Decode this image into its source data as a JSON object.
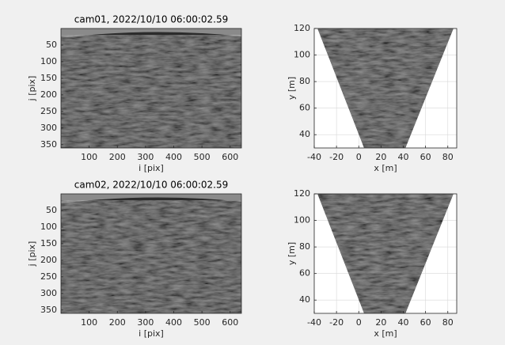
{
  "chart_data": [
    {
      "type": "image",
      "title": "cam01, 2022/10/10 06:00:02.59",
      "xlabel": "i [pix]",
      "ylabel": "j [pix]",
      "xlim": [
        0,
        640
      ],
      "ylim": [
        0,
        360
      ],
      "xticks": [
        100,
        200,
        300,
        400,
        500,
        600
      ],
      "yticks": [
        50,
        100,
        150,
        200,
        250,
        300,
        350
      ],
      "grid": false
    },
    {
      "type": "image",
      "xlabel": "x [m]",
      "ylabel": "y [m]",
      "xlim": [
        -40,
        88
      ],
      "ylim": [
        30,
        120
      ],
      "xticks": [
        -40,
        -20,
        0,
        20,
        40,
        60,
        80
      ],
      "yticks": [
        40,
        60,
        80,
        100,
        120
      ],
      "grid": true
    },
    {
      "type": "image",
      "title": "cam02, 2022/10/10 06:00:02.59",
      "xlabel": "i [pix]",
      "ylabel": "j [pix]",
      "xlim": [
        0,
        640
      ],
      "ylim": [
        0,
        360
      ],
      "xticks": [
        100,
        200,
        300,
        400,
        500,
        600
      ],
      "yticks": [
        50,
        100,
        150,
        200,
        250,
        300,
        350
      ],
      "grid": false
    },
    {
      "type": "image",
      "xlabel": "x [m]",
      "ylabel": "y [m]",
      "xlim": [
        -40,
        88
      ],
      "ylim": [
        30,
        120
      ],
      "xticks": [
        -40,
        -20,
        0,
        20,
        40,
        60,
        80
      ],
      "yticks": [
        40,
        60,
        80,
        100,
        120
      ],
      "grid": true
    }
  ]
}
